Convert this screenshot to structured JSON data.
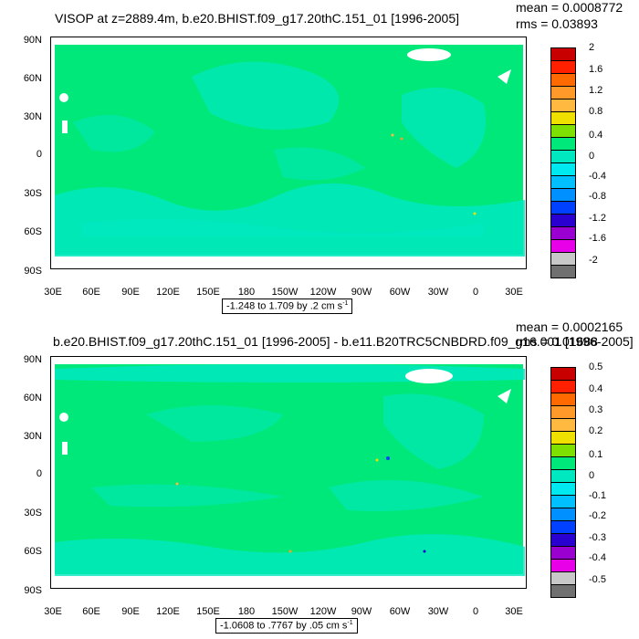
{
  "panels": [
    {
      "title": "VISOP at z=2889.4m, b.e20.BHIST.f09_g17.20thC.151_01 [1996-2005]",
      "mean": "mean = 0.0008772",
      "rms": "rms = 0.03893",
      "range_text": "-1.248 to 1.709 by .2 cm s",
      "range_unit_exp": "-1",
      "colorbar_labels": [
        "2",
        "1.6",
        "1.2",
        "0.8",
        "0.4",
        "0",
        "-0.4",
        "-0.8",
        "-1.2",
        "-1.6",
        "-2"
      ]
    },
    {
      "title": "b.e20.BHIST.f09_g17.20thC.151_01 [1996-2005] - b.e11.B20TRC5CNBDRD.f09_g16.001 [1996-2005]",
      "mean": "mean = 0.0002165",
      "rms": "rms = 0.01688",
      "range_text": "-1.0608 to .7767 by .05 cm s",
      "range_unit_exp": "-1",
      "colorbar_labels": [
        "0.5",
        "0.4",
        "0.3",
        "0.2",
        "0.1",
        "0",
        "-0.1",
        "-0.2",
        "-0.3",
        "-0.4",
        "-0.5"
      ]
    }
  ],
  "axes": {
    "lat_labels": [
      "90N",
      "60N",
      "30N",
      "0",
      "30S",
      "60S",
      "90S"
    ],
    "lon_labels": [
      "30E",
      "60E",
      "90E",
      "120E",
      "150E",
      "180",
      "150W",
      "120W",
      "90W",
      "60W",
      "30W",
      "0",
      "30E"
    ]
  },
  "colorbar_colors": [
    "#c80000",
    "#ff2000",
    "#ff6a00",
    "#ff9a2a",
    "#ffb840",
    "#f0e000",
    "#7ee000",
    "#00e87a",
    "#00e8c0",
    "#00e8f0",
    "#00c0ff",
    "#0090ff",
    "#0040ff",
    "#2a00d0",
    "#9a00d0",
    "#e800e8",
    "#c8c8c8",
    "#707070"
  ]
}
